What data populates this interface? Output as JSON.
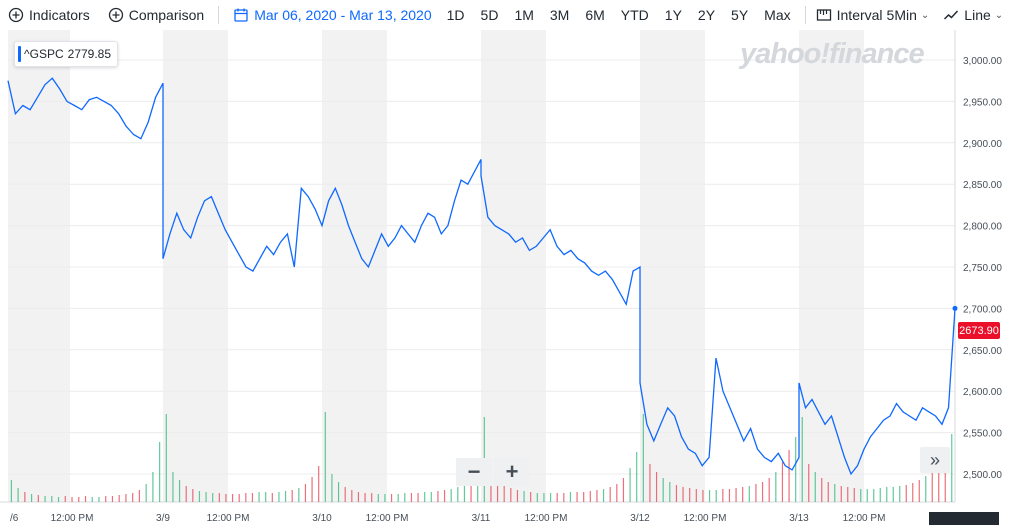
{
  "toolbar": {
    "indicators": "Indicators",
    "comparison": "Comparison",
    "date_range": "Mar 06, 2020 - Mar 13, 2020",
    "ranges": [
      "1D",
      "5D",
      "1M",
      "3M",
      "6M",
      "YTD",
      "1Y",
      "2Y",
      "5Y",
      "Max"
    ],
    "interval_label": "Interval",
    "interval_value": "5Min",
    "chart_type": "Line"
  },
  "legend": {
    "symbol": "^GSPC",
    "value": "2779.85"
  },
  "watermark": "yahoo!finance",
  "price_tag": "2673.90",
  "zoom": {
    "minus": "−",
    "plus": "+"
  },
  "next_icon": "»",
  "colors": {
    "line": "#0f69ff",
    "up": "#2fb67a",
    "down": "#e5414f",
    "session_shade": "#f2f2f2",
    "grid": "#ececec",
    "tag": "#eb0f29"
  },
  "chart_data": {
    "type": "line",
    "ylim": [
      2475,
      3020
    ],
    "yticks": [
      "3,000.00",
      "2,950.00",
      "2,900.00",
      "2,850.00",
      "2,800.00",
      "2,750.00",
      "2,700.00",
      "2,650.00",
      "2,600.00",
      "2,550.00",
      "2,500.00"
    ],
    "ytick_values": [
      3000,
      2950,
      2900,
      2850,
      2800,
      2750,
      2700,
      2650,
      2600,
      2550,
      2500
    ],
    "xticks": [
      "/6",
      "12:00 PM",
      "3/9",
      "12:00 PM",
      "3/10",
      "12:00 PM",
      "3/11",
      "12:00 PM",
      "3/12",
      "12:00 PM",
      "3/13",
      "12:00 PM"
    ],
    "days": [
      "3/6",
      "3/9",
      "3/10",
      "3/11",
      "3/12",
      "3/13"
    ],
    "series": [
      {
        "day": "3/6",
        "values": [
          2975,
          2935,
          2945,
          2940,
          2955,
          2970,
          2978,
          2965,
          2950,
          2945,
          2940,
          2952,
          2955,
          2950,
          2945,
          2935,
          2920,
          2910,
          2905,
          2925,
          2955,
          2972
        ]
      },
      {
        "day": "3/9",
        "values": [
          2760,
          2790,
          2815,
          2795,
          2785,
          2810,
          2830,
          2835,
          2815,
          2795,
          2780,
          2765,
          2750,
          2745,
          2760,
          2775,
          2765,
          2780,
          2790,
          2750,
          2845,
          2835,
          2820,
          2800
        ]
      },
      {
        "day": "3/10",
        "values": [
          2800,
          2830,
          2845,
          2825,
          2800,
          2780,
          2760,
          2750,
          2770,
          2790,
          2775,
          2785,
          2800,
          2790,
          2780,
          2800,
          2815,
          2810,
          2790,
          2800,
          2830,
          2855,
          2850,
          2865,
          2880
        ]
      },
      {
        "day": "3/11",
        "values": [
          2860,
          2810,
          2800,
          2795,
          2790,
          2780,
          2785,
          2770,
          2775,
          2785,
          2795,
          2775,
          2765,
          2770,
          2760,
          2755,
          2745,
          2740,
          2745,
          2735,
          2720,
          2705,
          2745,
          2750
        ]
      },
      {
        "day": "3/12",
        "values": [
          2610,
          2560,
          2540,
          2560,
          2580,
          2570,
          2545,
          2530,
          2525,
          2510,
          2520,
          2640,
          2600,
          2580,
          2560,
          2540,
          2555,
          2530,
          2520,
          2515,
          2525,
          2510,
          2505,
          2520
        ]
      },
      {
        "day": "3/13",
        "values": [
          2610,
          2580,
          2590,
          2575,
          2560,
          2570,
          2545,
          2520,
          2500,
          2510,
          2530,
          2545,
          2555,
          2565,
          2570,
          2585,
          2575,
          2570,
          2565,
          2580,
          2575,
          2570,
          2560,
          2580,
          2700
        ]
      }
    ],
    "volume": {
      "3/6": [
        22,
        14,
        10,
        8,
        7,
        6,
        6,
        5,
        6,
        5,
        5,
        6,
        5,
        5,
        6,
        6,
        7,
        8,
        9,
        12,
        18,
        30,
        60
      ],
      "3/9": [
        88,
        30,
        22,
        16,
        13,
        11,
        10,
        9,
        9,
        8,
        8,
        8,
        9,
        9,
        10,
        10,
        9,
        10,
        11,
        12,
        14,
        18,
        25,
        36
      ],
      "3/10": [
        90,
        28,
        20,
        15,
        12,
        10,
        9,
        9,
        8,
        8,
        8,
        8,
        9,
        9,
        9,
        10,
        10,
        11,
        12,
        13,
        15,
        20,
        28,
        42
      ],
      "3/11": [
        85,
        30,
        22,
        17,
        14,
        12,
        11,
        10,
        9,
        9,
        9,
        9,
        9,
        10,
        10,
        10,
        11,
        12,
        13,
        15,
        18,
        24,
        34,
        50
      ],
      "3/12": [
        88,
        38,
        30,
        24,
        20,
        17,
        15,
        14,
        13,
        12,
        12,
        12,
        13,
        13,
        14,
        15,
        16,
        18,
        20,
        24,
        30,
        40,
        52,
        65
      ],
      "3/13": [
        85,
        38,
        30,
        24,
        20,
        18,
        16,
        15,
        14,
        13,
        13,
        13,
        14,
        15,
        15,
        16,
        17,
        19,
        22,
        26,
        32,
        40,
        52,
        68
      ]
    }
  }
}
